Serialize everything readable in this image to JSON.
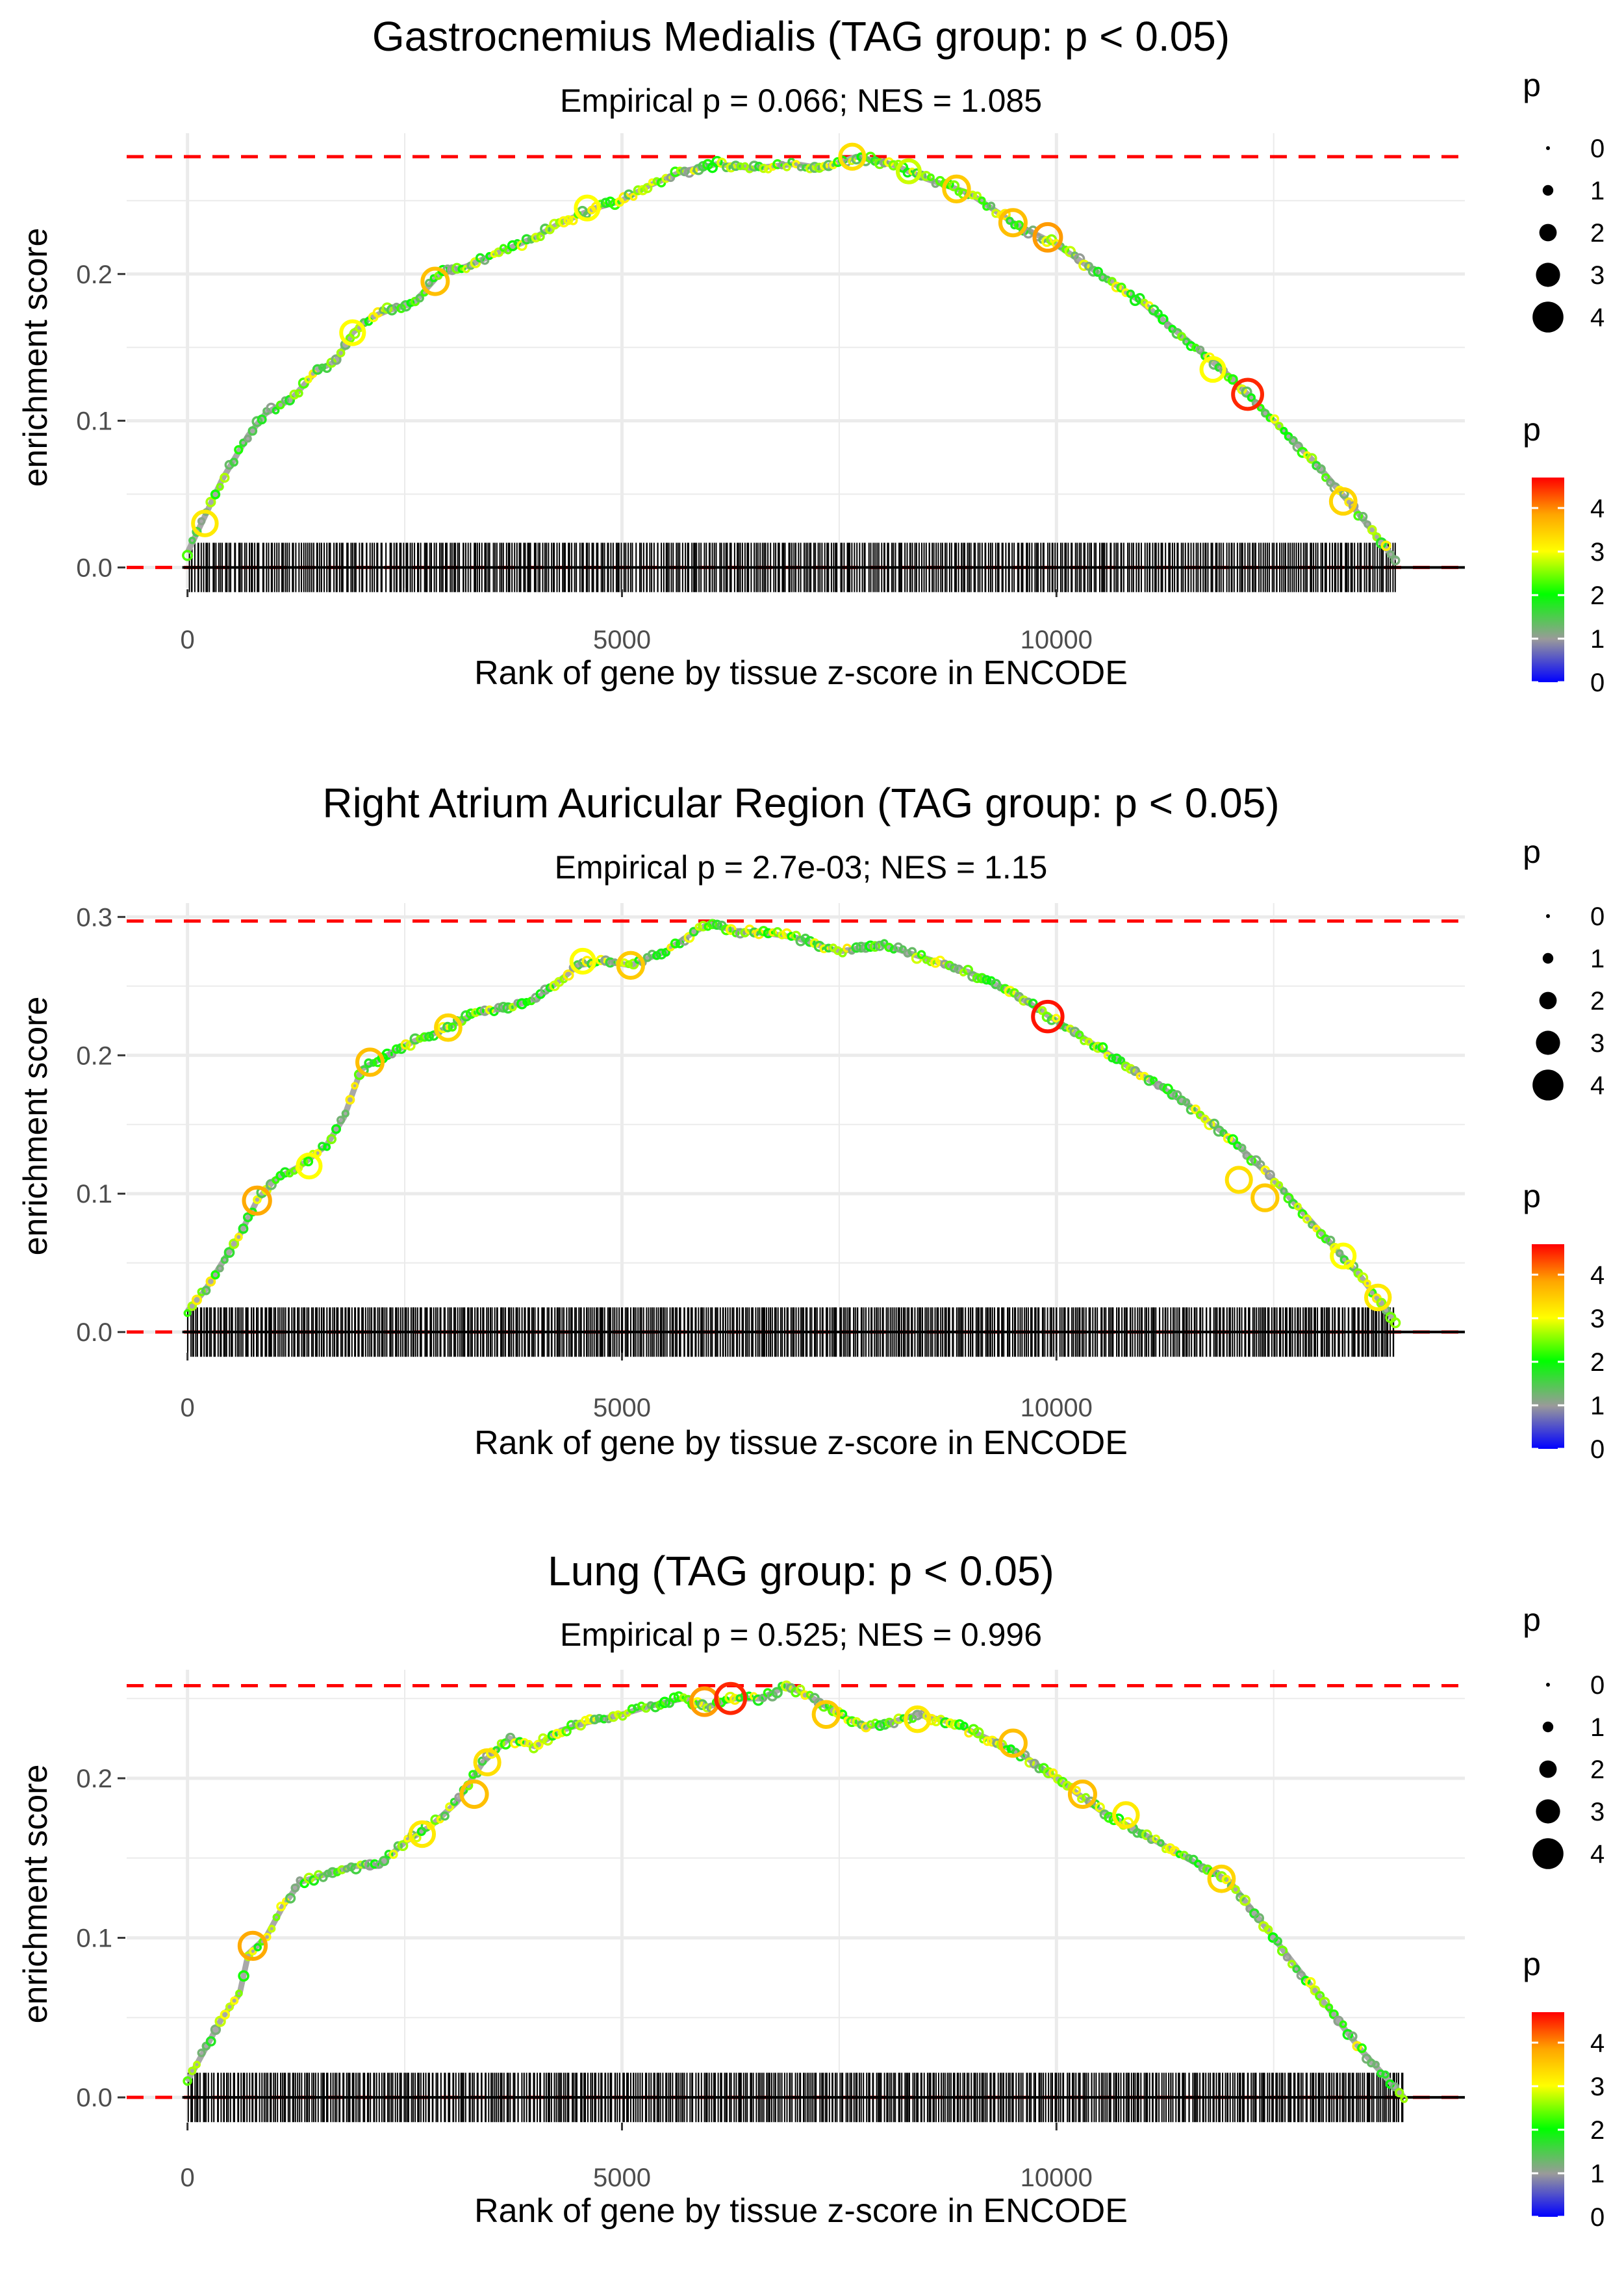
{
  "chart_data": [
    {
      "type": "line",
      "title": "Gastrocnemius Medialis (TAG group: p < 0.05)",
      "subtitle": "Empirical p = 0.066; NES = 1.085",
      "xlabel": "Rank of gene by tissue z-score in ENCODE",
      "ylabel": "enrichment score",
      "xlim": [
        -700,
        14700
      ],
      "ylim": [
        -0.014,
        0.296
      ],
      "x_ticks": [
        0,
        5000,
        10000
      ],
      "x_tick_labels": [
        "0",
        "5000",
        "10000"
      ],
      "y_ticks": [
        0.0,
        0.1,
        0.2
      ],
      "y_tick_labels": [
        "0.0",
        "0.1",
        "0.2"
      ],
      "max_es": 0.28,
      "rug_range": [
        0,
        13900
      ],
      "rug_count": 560,
      "curve": {
        "x": [
          0,
          200,
          400,
          700,
          900,
          1200,
          1500,
          1700,
          1900,
          2100,
          2300,
          2600,
          2900,
          3200,
          3600,
          4000,
          4300,
          4700,
          5000,
          5300,
          5700,
          6100,
          6500,
          7000,
          7300,
          7700,
          8100,
          8500,
          9000,
          9500,
          10000,
          10500,
          11000,
          11500,
          12000,
          12500,
          13000,
          13500,
          13900
        ],
        "y": [
          0.01,
          0.035,
          0.06,
          0.09,
          0.105,
          0.115,
          0.135,
          0.14,
          0.16,
          0.17,
          0.175,
          0.18,
          0.2,
          0.205,
          0.215,
          0.225,
          0.235,
          0.245,
          0.25,
          0.26,
          0.27,
          0.275,
          0.272,
          0.275,
          0.272,
          0.28,
          0.275,
          0.265,
          0.255,
          0.235,
          0.22,
          0.2,
          0.18,
          0.155,
          0.13,
          0.1,
          0.07,
          0.035,
          0.005
        ]
      },
      "highlight_points": [
        {
          "x": 200,
          "y": 0.03,
          "p": 3.2
        },
        {
          "x": 1900,
          "y": 0.16,
          "p": 3.0
        },
        {
          "x": 2850,
          "y": 0.195,
          "p": 3.6
        },
        {
          "x": 4600,
          "y": 0.245,
          "p": 3.0
        },
        {
          "x": 7650,
          "y": 0.28,
          "p": 3.3
        },
        {
          "x": 8300,
          "y": 0.27,
          "p": 2.8
        },
        {
          "x": 8850,
          "y": 0.258,
          "p": 3.5
        },
        {
          "x": 9500,
          "y": 0.235,
          "p": 3.6
        },
        {
          "x": 9900,
          "y": 0.225,
          "p": 3.9
        },
        {
          "x": 11800,
          "y": 0.135,
          "p": 3.0
        },
        {
          "x": 12200,
          "y": 0.118,
          "p": 4.5
        },
        {
          "x": 13300,
          "y": 0.045,
          "p": 3.4
        }
      ]
    },
    {
      "type": "line",
      "title": "Right Atrium Auricular Region (TAG group: p < 0.05)",
      "subtitle": "Empirical p = 2.7e-03; NES = 1.15",
      "xlabel": "Rank of gene by tissue z-score in ENCODE",
      "ylabel": "enrichment score",
      "xlim": [
        -700,
        14700
      ],
      "ylim": [
        -0.014,
        0.31
      ],
      "x_ticks": [
        0,
        5000,
        10000
      ],
      "x_tick_labels": [
        "0",
        "5000",
        "10000"
      ],
      "y_ticks": [
        0.0,
        0.1,
        0.2,
        0.3
      ],
      "y_tick_labels": [
        "0.0",
        "0.1",
        "0.2",
        "0.3"
      ],
      "max_es": 0.297,
      "rug_range": [
        0,
        13900
      ],
      "rug_count": 620,
      "curve": {
        "x": [
          0,
          200,
          400,
          600,
          800,
          1000,
          1300,
          1600,
          1800,
          2000,
          2300,
          2600,
          3000,
          3300,
          3700,
          4000,
          4300,
          4500,
          4800,
          5100,
          5500,
          5800,
          6000,
          6300,
          6700,
          7000,
          7500,
          8000,
          8500,
          9000,
          9500,
          10000,
          10500,
          11000,
          11500,
          12000,
          12500,
          13000,
          13500,
          13900
        ],
        "y": [
          0.015,
          0.03,
          0.05,
          0.07,
          0.095,
          0.11,
          0.12,
          0.135,
          0.155,
          0.19,
          0.2,
          0.21,
          0.22,
          0.23,
          0.235,
          0.24,
          0.255,
          0.265,
          0.268,
          0.265,
          0.275,
          0.288,
          0.295,
          0.29,
          0.288,
          0.285,
          0.275,
          0.28,
          0.27,
          0.26,
          0.245,
          0.225,
          0.205,
          0.185,
          0.165,
          0.14,
          0.11,
          0.075,
          0.04,
          0.008
        ]
      },
      "highlight_points": [
        {
          "x": 800,
          "y": 0.095,
          "p": 3.8
        },
        {
          "x": 1400,
          "y": 0.12,
          "p": 3.0
        },
        {
          "x": 2100,
          "y": 0.195,
          "p": 3.6
        },
        {
          "x": 3000,
          "y": 0.22,
          "p": 3.4
        },
        {
          "x": 4550,
          "y": 0.268,
          "p": 3.0
        },
        {
          "x": 5100,
          "y": 0.265,
          "p": 3.5
        },
        {
          "x": 9900,
          "y": 0.228,
          "p": 4.6
        },
        {
          "x": 12100,
          "y": 0.11,
          "p": 3.3
        },
        {
          "x": 12400,
          "y": 0.097,
          "p": 3.5
        },
        {
          "x": 13300,
          "y": 0.055,
          "p": 3.0
        },
        {
          "x": 13700,
          "y": 0.025,
          "p": 3.2
        }
      ]
    },
    {
      "type": "line",
      "title": "Lung (TAG group: p < 0.05)",
      "subtitle": "Empirical p = 0.525; NES = 0.996",
      "xlabel": "Rank of gene by tissue z-score in ENCODE",
      "ylabel": "enrichment score",
      "xlim": [
        -700,
        14700
      ],
      "ylim": [
        -0.015,
        0.268
      ],
      "x_ticks": [
        0,
        5000,
        10000
      ],
      "x_tick_labels": [
        "0",
        "5000",
        "10000"
      ],
      "y_ticks": [
        0.0,
        0.1,
        0.2
      ],
      "y_tick_labels": [
        "0.0",
        "0.1",
        "0.2"
      ],
      "max_es": 0.258,
      "rug_range": [
        0,
        14000
      ],
      "rug_count": 600,
      "curve": {
        "x": [
          0,
          200,
          400,
          600,
          700,
          900,
          1100,
          1300,
          1600,
          1900,
          2200,
          2500,
          2800,
          3100,
          3400,
          3700,
          4000,
          4300,
          4600,
          5000,
          5300,
          5700,
          6000,
          6300,
          6600,
          6900,
          7200,
          7500,
          7800,
          8100,
          8400,
          8800,
          9200,
          9600,
          10000,
          10500,
          11000,
          11500,
          12000,
          12500,
          13000,
          13500,
          14000
        ],
        "y": [
          0.01,
          0.03,
          0.05,
          0.065,
          0.09,
          0.1,
          0.12,
          0.135,
          0.14,
          0.145,
          0.145,
          0.16,
          0.17,
          0.185,
          0.21,
          0.225,
          0.22,
          0.23,
          0.235,
          0.24,
          0.245,
          0.25,
          0.245,
          0.25,
          0.25,
          0.258,
          0.25,
          0.24,
          0.232,
          0.235,
          0.24,
          0.235,
          0.225,
          0.215,
          0.2,
          0.18,
          0.165,
          0.15,
          0.135,
          0.1,
          0.065,
          0.03,
          0.0
        ]
      },
      "highlight_points": [
        {
          "x": 750,
          "y": 0.095,
          "p": 3.8
        },
        {
          "x": 2700,
          "y": 0.165,
          "p": 3.2
        },
        {
          "x": 3300,
          "y": 0.19,
          "p": 3.6
        },
        {
          "x": 3450,
          "y": 0.21,
          "p": 3.3
        },
        {
          "x": 5950,
          "y": 0.248,
          "p": 3.9
        },
        {
          "x": 6250,
          "y": 0.25,
          "p": 4.5
        },
        {
          "x": 7350,
          "y": 0.24,
          "p": 3.5
        },
        {
          "x": 8400,
          "y": 0.237,
          "p": 3.2
        },
        {
          "x": 9500,
          "y": 0.222,
          "p": 3.6
        },
        {
          "x": 10300,
          "y": 0.19,
          "p": 3.6
        },
        {
          "x": 10800,
          "y": 0.177,
          "p": 3.2
        },
        {
          "x": 11900,
          "y": 0.137,
          "p": 3.4
        }
      ]
    }
  ],
  "legends": {
    "size_title": "p",
    "size_levels": [
      "0",
      "1",
      "2",
      "3",
      "4"
    ],
    "color_title": "p",
    "color_ticks": [
      "4",
      "3",
      "2",
      "1",
      "0"
    ],
    "color_scale_max": 4.7,
    "colors": [
      "#0000ff",
      "#9a9a9a",
      "#00ff00",
      "#ffff00",
      "#ffa500",
      "#ff0000"
    ]
  },
  "styles": {
    "max_line_color": "#ff0000",
    "zero_line_color": "#000000",
    "grid_color": "#ebebeb",
    "rug_color": "#000000"
  }
}
